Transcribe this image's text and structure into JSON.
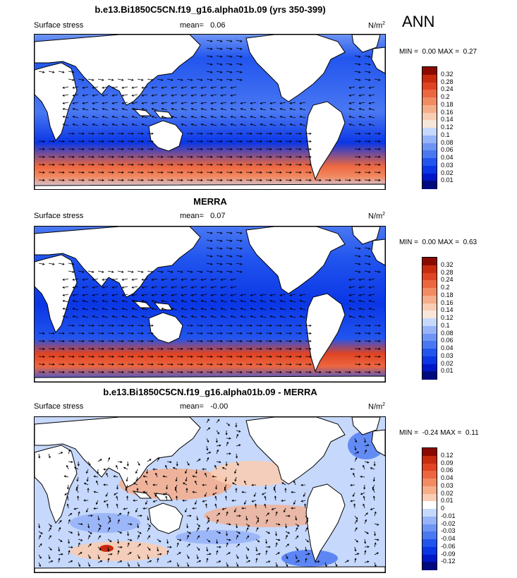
{
  "season": "ANN",
  "colors": {
    "positive_scale": [
      "#000a80",
      "#0018c8",
      "#0a36e6",
      "#2255ee",
      "#4a78f2",
      "#6e95f4",
      "#97b4f8",
      "#c6d8fb",
      "#f7e7d8",
      "#f8cdb3",
      "#f6ad8a",
      "#f28a62",
      "#ec6740",
      "#e14423",
      "#c92b10",
      "#8b0a00"
    ],
    "diff_scale": [
      "#000a80",
      "#0018c8",
      "#0a36e6",
      "#2255ee",
      "#4a78f2",
      "#6e95f4",
      "#97b4f8",
      "#c6d8fb",
      "#ffffff",
      "#f8cdb3",
      "#f6ad8a",
      "#f28a62",
      "#ec6740",
      "#e14423",
      "#c92b10",
      "#8b0a00"
    ],
    "land": "#ffffff",
    "coast": "#000000"
  },
  "panels": [
    {
      "title": "b.e13.Bi1850C5CN.f19_g16.alpha01b.09 (yrs 350-399)",
      "variable": "Surface stress",
      "mean_label": "mean=",
      "mean_value": "0.06",
      "units": "N/m",
      "units_sup": "2",
      "min_label": "MIN =",
      "min_value": "0.00",
      "max_label": "MAX =",
      "max_value": "0.27",
      "scale": "positive",
      "levels": [
        "0.32",
        "0.28",
        "0.24",
        "0.2",
        "0.18",
        "0.16",
        "0.14",
        "0.12",
        "0.1",
        "0.08",
        "0.06",
        "0.04",
        "0.03",
        "0.02",
        "0.01"
      ]
    },
    {
      "title": "MERRA",
      "variable": "Surface stress",
      "mean_label": "mean=",
      "mean_value": "0.07",
      "units": "N/m",
      "units_sup": "2",
      "min_label": "MIN =",
      "min_value": "0.00",
      "max_label": "MAX =",
      "max_value": "0.63",
      "scale": "positive",
      "levels": [
        "0.32",
        "0.28",
        "0.24",
        "0.2",
        "0.18",
        "0.16",
        "0.14",
        "0.12",
        "0.1",
        "0.08",
        "0.06",
        "0.04",
        "0.03",
        "0.02",
        "0.01"
      ]
    },
    {
      "title": "b.e13.Bi1850C5CN.f19_g16.alpha01b.09 - MERRA",
      "variable": "Surface stress",
      "mean_label": "mean=",
      "mean_value": "-0.00",
      "units": "N/m",
      "units_sup": "2",
      "min_label": "MIN =",
      "min_value": "-0.24",
      "max_label": "MAX =",
      "max_value": "0.11",
      "scale": "diff",
      "levels": [
        "0.12",
        "0.09",
        "0.06",
        "0.04",
        "0.03",
        "0.02",
        "0.01",
        "0",
        "-0.01",
        "-0.02",
        "-0.03",
        "-0.04",
        "-0.06",
        "-0.09",
        "-0.12"
      ]
    }
  ]
}
